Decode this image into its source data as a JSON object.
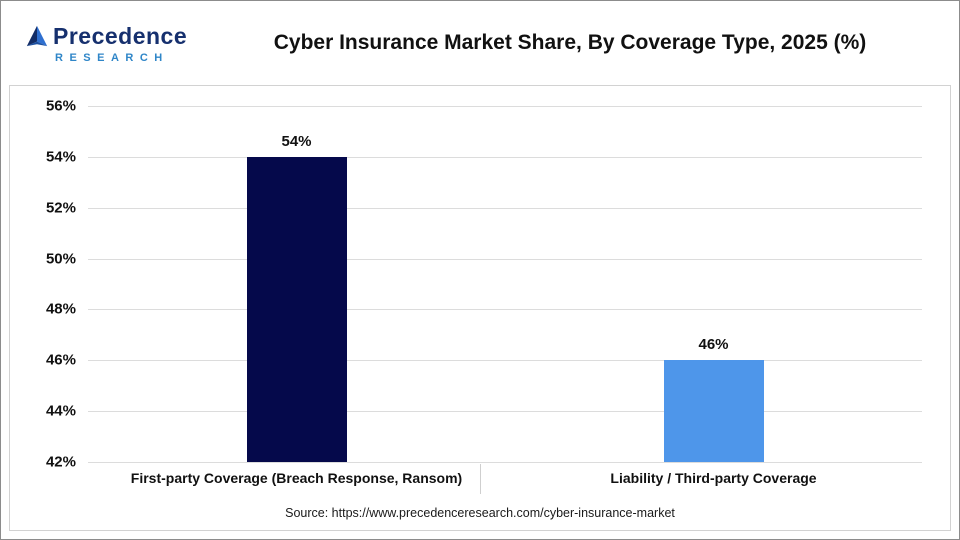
{
  "header": {
    "logo": {
      "line1": "Precedence",
      "line2": "RESEARCH"
    },
    "title": "Cyber Insurance Market Share, By Coverage Type, 2025 (%)"
  },
  "chart_data": {
    "type": "bar",
    "title": "Cyber Insurance Market Share, By Coverage Type, 2025 (%)",
    "categories": [
      "First-party Coverage (Breach Response, Ransom)",
      "Liability / Third-party Coverage"
    ],
    "values": [
      54,
      46
    ],
    "value_labels": [
      "54%",
      "46%"
    ],
    "bar_colors": [
      "#05094B",
      "#4E96EA"
    ],
    "xlabel": "",
    "ylabel": "",
    "ylim": [
      42,
      56
    ],
    "ytick_step": 2,
    "ytick_suffix": "%",
    "grid": true,
    "legend": "none"
  },
  "footer": {
    "source": "Source: https://www.precedenceresearch.com/cyber-insurance-market"
  }
}
